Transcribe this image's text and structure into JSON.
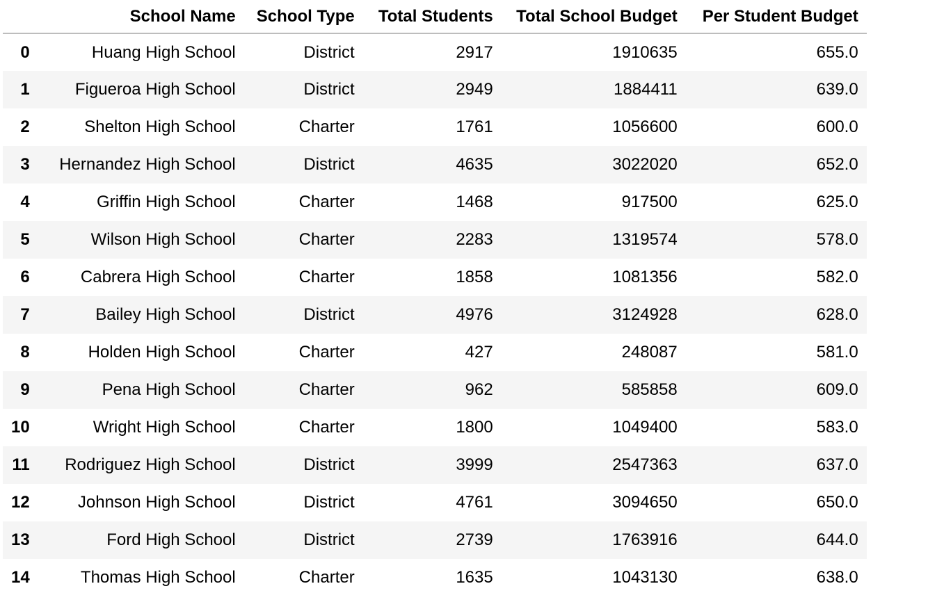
{
  "table": {
    "index_header": "",
    "columns": [
      "School Name",
      "School Type",
      "Total Students",
      "Total School Budget",
      "Per Student Budget"
    ],
    "rows": [
      {
        "index": "0",
        "school_name": "Huang High School",
        "school_type": "District",
        "total_students": "2917",
        "total_school_budget": "1910635",
        "per_student_budget": "655.0"
      },
      {
        "index": "1",
        "school_name": "Figueroa High School",
        "school_type": "District",
        "total_students": "2949",
        "total_school_budget": "1884411",
        "per_student_budget": "639.0"
      },
      {
        "index": "2",
        "school_name": "Shelton High School",
        "school_type": "Charter",
        "total_students": "1761",
        "total_school_budget": "1056600",
        "per_student_budget": "600.0"
      },
      {
        "index": "3",
        "school_name": "Hernandez High School",
        "school_type": "District",
        "total_students": "4635",
        "total_school_budget": "3022020",
        "per_student_budget": "652.0"
      },
      {
        "index": "4",
        "school_name": "Griffin High School",
        "school_type": "Charter",
        "total_students": "1468",
        "total_school_budget": "917500",
        "per_student_budget": "625.0"
      },
      {
        "index": "5",
        "school_name": "Wilson High School",
        "school_type": "Charter",
        "total_students": "2283",
        "total_school_budget": "1319574",
        "per_student_budget": "578.0"
      },
      {
        "index": "6",
        "school_name": "Cabrera High School",
        "school_type": "Charter",
        "total_students": "1858",
        "total_school_budget": "1081356",
        "per_student_budget": "582.0"
      },
      {
        "index": "7",
        "school_name": "Bailey High School",
        "school_type": "District",
        "total_students": "4976",
        "total_school_budget": "3124928",
        "per_student_budget": "628.0"
      },
      {
        "index": "8",
        "school_name": "Holden High School",
        "school_type": "Charter",
        "total_students": "427",
        "total_school_budget": "248087",
        "per_student_budget": "581.0"
      },
      {
        "index": "9",
        "school_name": "Pena High School",
        "school_type": "Charter",
        "total_students": "962",
        "total_school_budget": "585858",
        "per_student_budget": "609.0"
      },
      {
        "index": "10",
        "school_name": "Wright High School",
        "school_type": "Charter",
        "total_students": "1800",
        "total_school_budget": "1049400",
        "per_student_budget": "583.0"
      },
      {
        "index": "11",
        "school_name": "Rodriguez High School",
        "school_type": "District",
        "total_students": "3999",
        "total_school_budget": "2547363",
        "per_student_budget": "637.0"
      },
      {
        "index": "12",
        "school_name": "Johnson High School",
        "school_type": "District",
        "total_students": "4761",
        "total_school_budget": "3094650",
        "per_student_budget": "650.0"
      },
      {
        "index": "13",
        "school_name": "Ford High School",
        "school_type": "District",
        "total_students": "2739",
        "total_school_budget": "1763916",
        "per_student_budget": "644.0"
      },
      {
        "index": "14",
        "school_name": "Thomas High School",
        "school_type": "Charter",
        "total_students": "1635",
        "total_school_budget": "1043130",
        "per_student_budget": "638.0"
      }
    ]
  },
  "colors": {
    "row_alt_background": "#f5f5f5",
    "header_rule": "#bdbdbd",
    "text": "#000000"
  }
}
